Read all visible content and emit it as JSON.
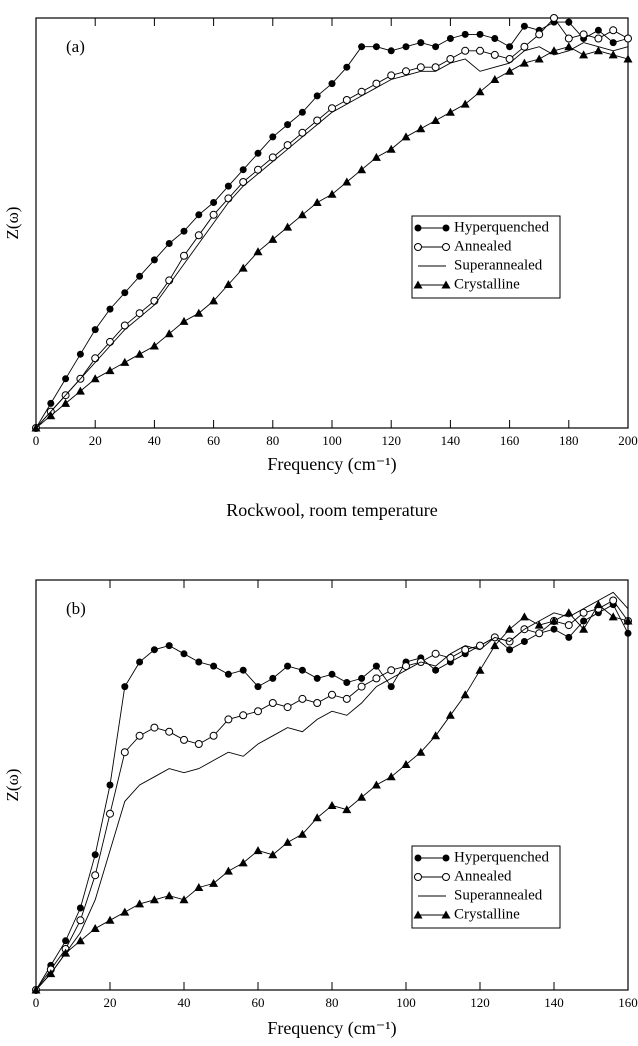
{
  "chart_data": [
    {
      "type": "line",
      "annotation": "(a)",
      "x_label": "Frequency (cm⁻¹)",
      "y_label": "Z(ω)",
      "x": [
        0,
        5,
        10,
        15,
        20,
        25,
        30,
        35,
        40,
        45,
        50,
        55,
        60,
        65,
        70,
        75,
        80,
        85,
        90,
        95,
        100,
        105,
        110,
        115,
        120,
        125,
        130,
        135,
        140,
        145,
        150,
        155,
        160,
        165,
        170,
        175,
        180,
        185,
        190,
        195,
        200
      ],
      "xlim": [
        0,
        200
      ],
      "xticks": [
        0,
        20,
        40,
        60,
        80,
        100,
        120,
        140,
        160,
        180,
        200
      ],
      "ylim": [
        0,
        1
      ],
      "legend": "center right",
      "series": [
        {
          "name": "Hyperquenched",
          "color": "#000000",
          "marker": "circle",
          "values": [
            0,
            0.06,
            0.12,
            0.18,
            0.24,
            0.29,
            0.33,
            0.37,
            0.41,
            0.45,
            0.48,
            0.52,
            0.55,
            0.59,
            0.63,
            0.67,
            0.71,
            0.74,
            0.77,
            0.81,
            0.84,
            0.88,
            0.93,
            0.93,
            0.92,
            0.93,
            0.94,
            0.93,
            0.95,
            0.96,
            0.96,
            0.95,
            0.93,
            0.98,
            0.97,
            0.99,
            0.99,
            0.95,
            0.97,
            0.94,
            0.95
          ]
        },
        {
          "name": "Annealed",
          "color": "#000000",
          "marker": "open-circle",
          "values": [
            0,
            0.04,
            0.08,
            0.12,
            0.17,
            0.21,
            0.25,
            0.28,
            0.31,
            0.36,
            0.42,
            0.47,
            0.52,
            0.56,
            0.6,
            0.63,
            0.66,
            0.69,
            0.72,
            0.75,
            0.78,
            0.8,
            0.82,
            0.84,
            0.86,
            0.87,
            0.88,
            0.88,
            0.9,
            0.92,
            0.92,
            0.91,
            0.9,
            0.93,
            0.96,
            1.0,
            0.95,
            0.96,
            0.95,
            0.97,
            0.95
          ]
        },
        {
          "name": "Superannealed",
          "color": "#000000",
          "marker": "none",
          "values": [
            0,
            0.04,
            0.08,
            0.12,
            0.16,
            0.2,
            0.24,
            0.27,
            0.3,
            0.35,
            0.4,
            0.45,
            0.5,
            0.55,
            0.59,
            0.62,
            0.65,
            0.68,
            0.71,
            0.74,
            0.77,
            0.79,
            0.81,
            0.83,
            0.85,
            0.86,
            0.87,
            0.87,
            0.89,
            0.9,
            0.87,
            0.88,
            0.89,
            0.92,
            0.93,
            0.91,
            0.92,
            0.94,
            0.93,
            0.92,
            0.93
          ]
        },
        {
          "name": "Crystalline",
          "color": "#000000",
          "marker": "triangle",
          "values": [
            0,
            0.03,
            0.06,
            0.09,
            0.12,
            0.14,
            0.16,
            0.18,
            0.2,
            0.23,
            0.26,
            0.28,
            0.31,
            0.35,
            0.39,
            0.43,
            0.46,
            0.49,
            0.52,
            0.55,
            0.57,
            0.6,
            0.63,
            0.66,
            0.68,
            0.71,
            0.73,
            0.75,
            0.77,
            0.79,
            0.82,
            0.85,
            0.87,
            0.89,
            0.9,
            0.92,
            0.93,
            0.91,
            0.92,
            0.91,
            0.9
          ]
        }
      ]
    },
    {
      "type": "line",
      "title": "Rockwool, room temperature",
      "annotation": "(b)",
      "x_label": "Frequency (cm⁻¹)",
      "y_label": "Z(ω)",
      "x": [
        0,
        4,
        8,
        12,
        16,
        20,
        24,
        28,
        32,
        36,
        40,
        44,
        48,
        52,
        56,
        60,
        64,
        68,
        72,
        76,
        80,
        84,
        88,
        92,
        96,
        100,
        104,
        108,
        112,
        116,
        120,
        124,
        128,
        132,
        136,
        140,
        144,
        148,
        152,
        156,
        160
      ],
      "xlim": [
        0,
        160
      ],
      "xticks": [
        0,
        20,
        40,
        60,
        80,
        100,
        120,
        140,
        160
      ],
      "ylim": [
        0,
        1
      ],
      "legend": "lower right",
      "series": [
        {
          "name": "Hyperquenched",
          "color": "#000000",
          "marker": "circle",
          "values": [
            0,
            0.06,
            0.12,
            0.2,
            0.33,
            0.5,
            0.74,
            0.8,
            0.83,
            0.84,
            0.82,
            0.8,
            0.79,
            0.77,
            0.78,
            0.74,
            0.76,
            0.79,
            0.78,
            0.76,
            0.77,
            0.75,
            0.76,
            0.79,
            0.74,
            0.8,
            0.81,
            0.78,
            0.8,
            0.82,
            0.84,
            0.86,
            0.83,
            0.85,
            0.87,
            0.88,
            0.86,
            0.9,
            0.92,
            0.94,
            0.87
          ]
        },
        {
          "name": "Annealed",
          "color": "#000000",
          "marker": "open-circle",
          "values": [
            0,
            0.05,
            0.1,
            0.17,
            0.28,
            0.43,
            0.58,
            0.62,
            0.64,
            0.63,
            0.61,
            0.6,
            0.62,
            0.66,
            0.67,
            0.68,
            0.7,
            0.69,
            0.71,
            0.7,
            0.72,
            0.71,
            0.74,
            0.76,
            0.78,
            0.79,
            0.8,
            0.82,
            0.81,
            0.83,
            0.84,
            0.86,
            0.85,
            0.88,
            0.87,
            0.9,
            0.89,
            0.92,
            0.93,
            0.95,
            0.9
          ]
        },
        {
          "name": "Superannealed",
          "color": "#000000",
          "marker": "none",
          "values": [
            0,
            0.04,
            0.09,
            0.14,
            0.22,
            0.34,
            0.46,
            0.5,
            0.52,
            0.54,
            0.53,
            0.54,
            0.56,
            0.58,
            0.57,
            0.6,
            0.62,
            0.64,
            0.63,
            0.66,
            0.68,
            0.67,
            0.7,
            0.74,
            0.76,
            0.78,
            0.8,
            0.79,
            0.82,
            0.84,
            0.83,
            0.86,
            0.85,
            0.88,
            0.9,
            0.92,
            0.91,
            0.93,
            0.95,
            0.97,
            0.93
          ]
        },
        {
          "name": "Crystalline",
          "color": "#000000",
          "marker": "triangle",
          "values": [
            0,
            0.04,
            0.09,
            0.12,
            0.15,
            0.17,
            0.19,
            0.21,
            0.22,
            0.23,
            0.22,
            0.25,
            0.26,
            0.29,
            0.31,
            0.34,
            0.33,
            0.36,
            0.38,
            0.42,
            0.45,
            0.44,
            0.47,
            0.5,
            0.52,
            0.55,
            0.58,
            0.62,
            0.67,
            0.72,
            0.78,
            0.84,
            0.88,
            0.91,
            0.89,
            0.9,
            0.92,
            0.88,
            0.94,
            0.91,
            0.9
          ]
        }
      ]
    }
  ]
}
